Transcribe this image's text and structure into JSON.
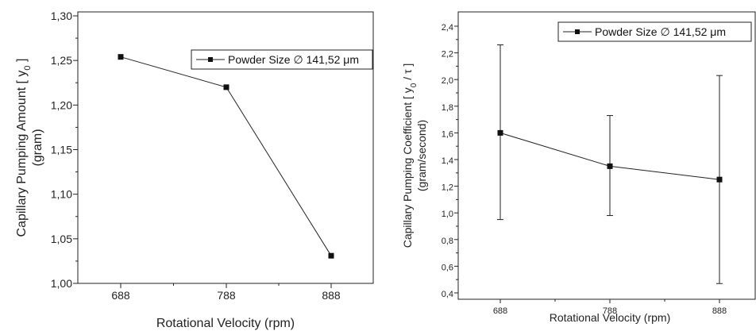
{
  "chart_data": [
    {
      "type": "line",
      "x": [
        688,
        788,
        888
      ],
      "series": [
        {
          "name": "Powder Size ∅ 141,52 μm",
          "values": [
            1.254,
            1.22,
            1.031
          ]
        }
      ],
      "xlabel": "Rotational Velocity (rpm)",
      "ylabel": "Capillary Pumping Amount [ y",
      "ylabel_sub": "0",
      "ylabel_tail": " ]",
      "ylabel2": "(gram)",
      "xticks": [
        "688",
        "788",
        "888"
      ],
      "yticks": [
        "1,00",
        "1,05",
        "1,10",
        "1,15",
        "1,20",
        "1,25",
        "1,30"
      ],
      "xlim": [
        688,
        888
      ],
      "ylim": [
        1.0,
        1.3
      ],
      "legend_position": "top-right"
    },
    {
      "type": "line",
      "x": [
        688,
        788,
        888
      ],
      "series": [
        {
          "name": "Powder Size ∅ 141,52 μm",
          "values": [
            1.6,
            1.35,
            1.25
          ],
          "error_low": [
            0.95,
            0.98,
            0.47
          ],
          "error_high": [
            2.26,
            1.73,
            2.03
          ]
        }
      ],
      "xlabel": "Rotational Velocity (rpm)",
      "ylabel": "Capillary Pumping Coefficient [ y",
      "ylabel_sub": "0",
      "ylabel_tail": " / τ ]",
      "ylabel2": "(gram/second)",
      "xticks": [
        "688",
        "788",
        "888"
      ],
      "yticks": [
        "0,4",
        "0,6",
        "0,8",
        "1,0",
        "1,2",
        "1,4",
        "1,6",
        "1,8",
        "2,0",
        "2,2",
        "2,4"
      ],
      "xlim": [
        688,
        888
      ],
      "ylim": [
        0.4,
        2.4
      ],
      "legend_position": "top-right"
    }
  ]
}
